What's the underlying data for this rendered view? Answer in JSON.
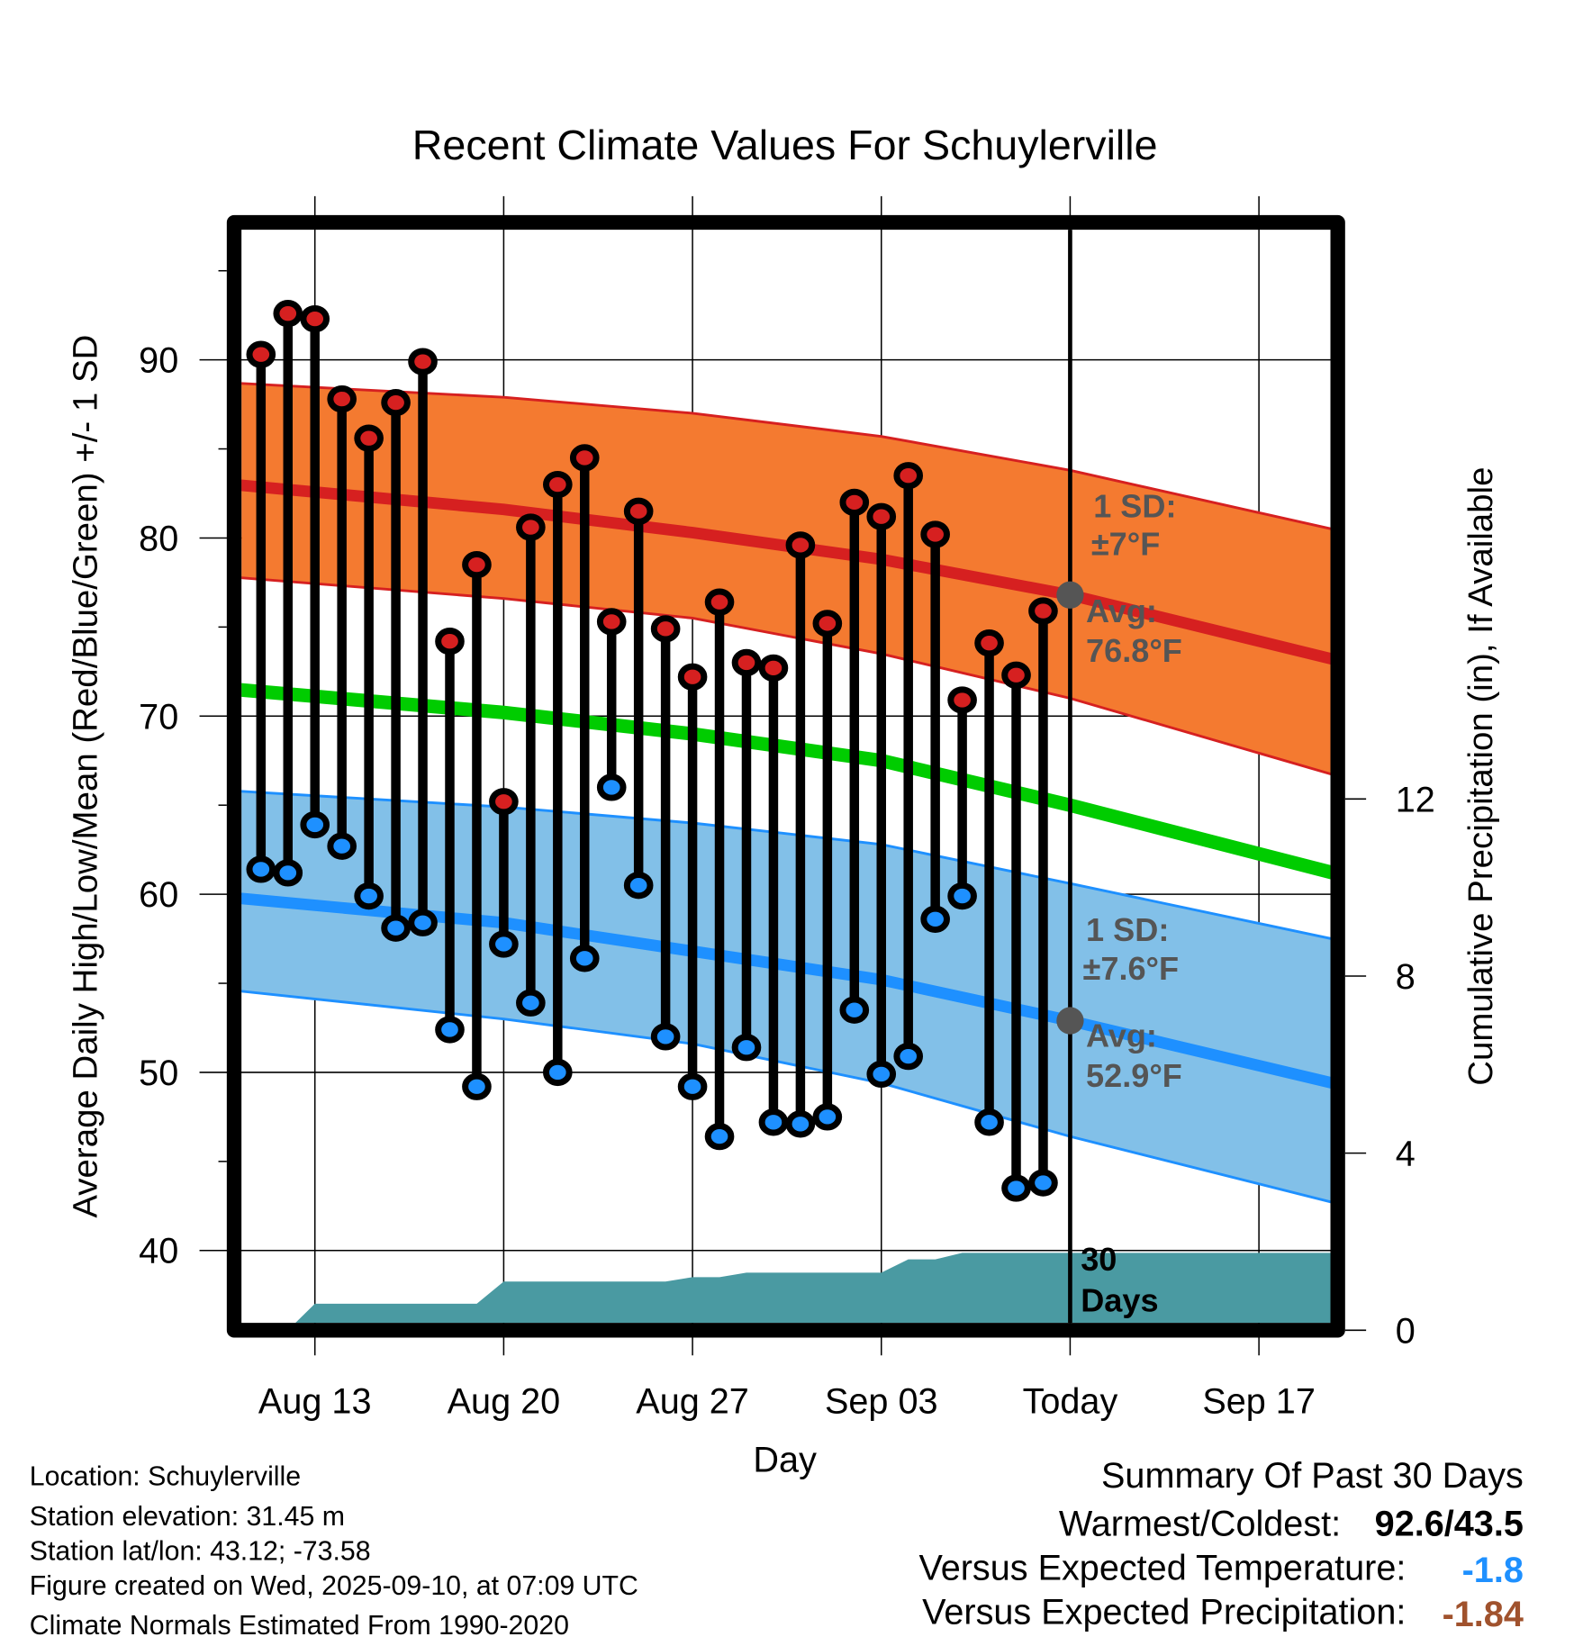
{
  "chart_data": {
    "type": "line",
    "title": "Recent Climate Values For Schuylerville",
    "xlabel": "Day",
    "ylabel": "Average Daily High/Low/Mean (Red/Blue/Green) +/- 1 SD",
    "y2label": "Cumulative Precipitation (in), If Available",
    "ylim": [
      36,
      97
    ],
    "y2lim": [
      0,
      14.5
    ],
    "grid": true,
    "x_ticks": [
      {
        "date": "2025-08-13",
        "label": "Aug 13"
      },
      {
        "date": "2025-08-20",
        "label": "Aug 20"
      },
      {
        "date": "2025-08-27",
        "label": "Aug 27"
      },
      {
        "date": "2025-09-03",
        "label": "Sep 03"
      },
      {
        "date": "2025-09-10",
        "label": "Today"
      },
      {
        "date": "2025-09-17",
        "label": "Sep 17"
      }
    ],
    "y_ticks": [
      40,
      50,
      60,
      70,
      80,
      90
    ],
    "y2_ticks": [
      0,
      4,
      8,
      12
    ],
    "daily": {
      "dates": [
        "2025-08-11",
        "2025-08-12",
        "2025-08-13",
        "2025-08-14",
        "2025-08-15",
        "2025-08-16",
        "2025-08-17",
        "2025-08-18",
        "2025-08-19",
        "2025-08-20",
        "2025-08-21",
        "2025-08-22",
        "2025-08-23",
        "2025-08-24",
        "2025-08-25",
        "2025-08-26",
        "2025-08-27",
        "2025-08-28",
        "2025-08-29",
        "2025-08-30",
        "2025-08-31",
        "2025-09-01",
        "2025-09-02",
        "2025-09-03",
        "2025-09-04",
        "2025-09-05",
        "2025-09-06",
        "2025-09-07",
        "2025-09-08",
        "2025-09-09"
      ],
      "high": [
        90.3,
        92.6,
        92.3,
        87.8,
        85.6,
        87.6,
        89.9,
        74.2,
        78.5,
        65.2,
        80.6,
        83.0,
        84.5,
        75.3,
        81.5,
        74.9,
        72.2,
        76.4,
        73.0,
        72.7,
        79.6,
        75.2,
        82.0,
        81.2,
        83.5,
        80.2,
        70.9,
        74.1,
        72.3,
        75.9
      ],
      "low": [
        61.4,
        61.2,
        63.9,
        62.7,
        59.9,
        58.1,
        58.4,
        52.4,
        49.2,
        57.2,
        53.9,
        50.0,
        56.4,
        66.0,
        60.5,
        52.0,
        49.2,
        46.4,
        51.4,
        47.2,
        47.1,
        47.5,
        53.5,
        49.9,
        50.9,
        58.6,
        59.9,
        47.2,
        43.5,
        43.8
      ]
    },
    "normals": {
      "dates": [
        "2025-08-10",
        "2025-08-20",
        "2025-08-27",
        "2025-09-03",
        "2025-09-10",
        "2025-09-20"
      ],
      "high_avg": [
        83.0,
        81.6,
        80.3,
        78.8,
        76.8,
        73.1
      ],
      "high_upper": [
        88.7,
        87.9,
        87.0,
        85.7,
        83.8,
        80.4
      ],
      "high_lower": [
        77.8,
        76.6,
        75.5,
        73.5,
        71.0,
        66.6
      ],
      "low_avg": [
        59.8,
        58.4,
        56.8,
        55.2,
        52.9,
        49.3
      ],
      "low_upper": [
        65.8,
        64.9,
        64.0,
        62.8,
        60.6,
        57.4
      ],
      "low_lower": [
        54.6,
        53.0,
        51.6,
        49.4,
        46.4,
        42.6
      ],
      "mean_avg": [
        71.5,
        70.2,
        69.0,
        67.5,
        65.0,
        61.1
      ]
    },
    "precip_cumulative": {
      "dates": [
        "2025-08-10",
        "2025-08-12",
        "2025-08-13",
        "2025-08-19",
        "2025-08-20",
        "2025-08-26",
        "2025-08-27",
        "2025-08-28",
        "2025-08-29",
        "2025-09-03",
        "2025-09-04",
        "2025-09-05",
        "2025-09-06",
        "2025-09-20"
      ],
      "values": [
        0,
        0,
        0.6,
        0.6,
        1.1,
        1.1,
        1.2,
        1.2,
        1.3,
        1.3,
        1.6,
        1.6,
        1.75,
        1.75
      ]
    },
    "annotations": {
      "high_sd_label": "1 SD:",
      "high_sd_value": "±7°F",
      "high_avg_label": "Avg:",
      "high_avg_value": "76.8°F",
      "low_sd_label": "1 SD:",
      "low_sd_value": "±7.6°F",
      "low_avg_label": "Avg:",
      "low_avg_value": "52.9°F",
      "window_num": "30",
      "window_unit": "Days"
    },
    "colors": {
      "high": "#d62020",
      "high_band": "#f47a30",
      "low": "#1e90ff",
      "low_band": "#82c0e8",
      "mean": "#00cc00",
      "precip": "#4a9aa2",
      "annotation": "#555555"
    }
  },
  "footer": {
    "location": "Location: Schuylerville",
    "elevation": "Station elevation: 31.45 m",
    "latlon": "Station lat/lon: 43.12; -73.58",
    "created": "Figure created on Wed, 2025-09-10, at 07:09 UTC",
    "normals": "Climate Normals Estimated From 1990-2020"
  },
  "summary": {
    "title": "Summary Of Past 30 Days",
    "warm_cold_label": "Warmest/Coldest:",
    "warm_cold_value": "92.6/43.5",
    "temp_label": "Versus Expected Temperature:",
    "temp_value": "-1.8",
    "temp_color": "#1e90ff",
    "precip_label": "Versus Expected Precipitation:",
    "precip_value": "-1.84",
    "precip_color": "#a0522d"
  }
}
